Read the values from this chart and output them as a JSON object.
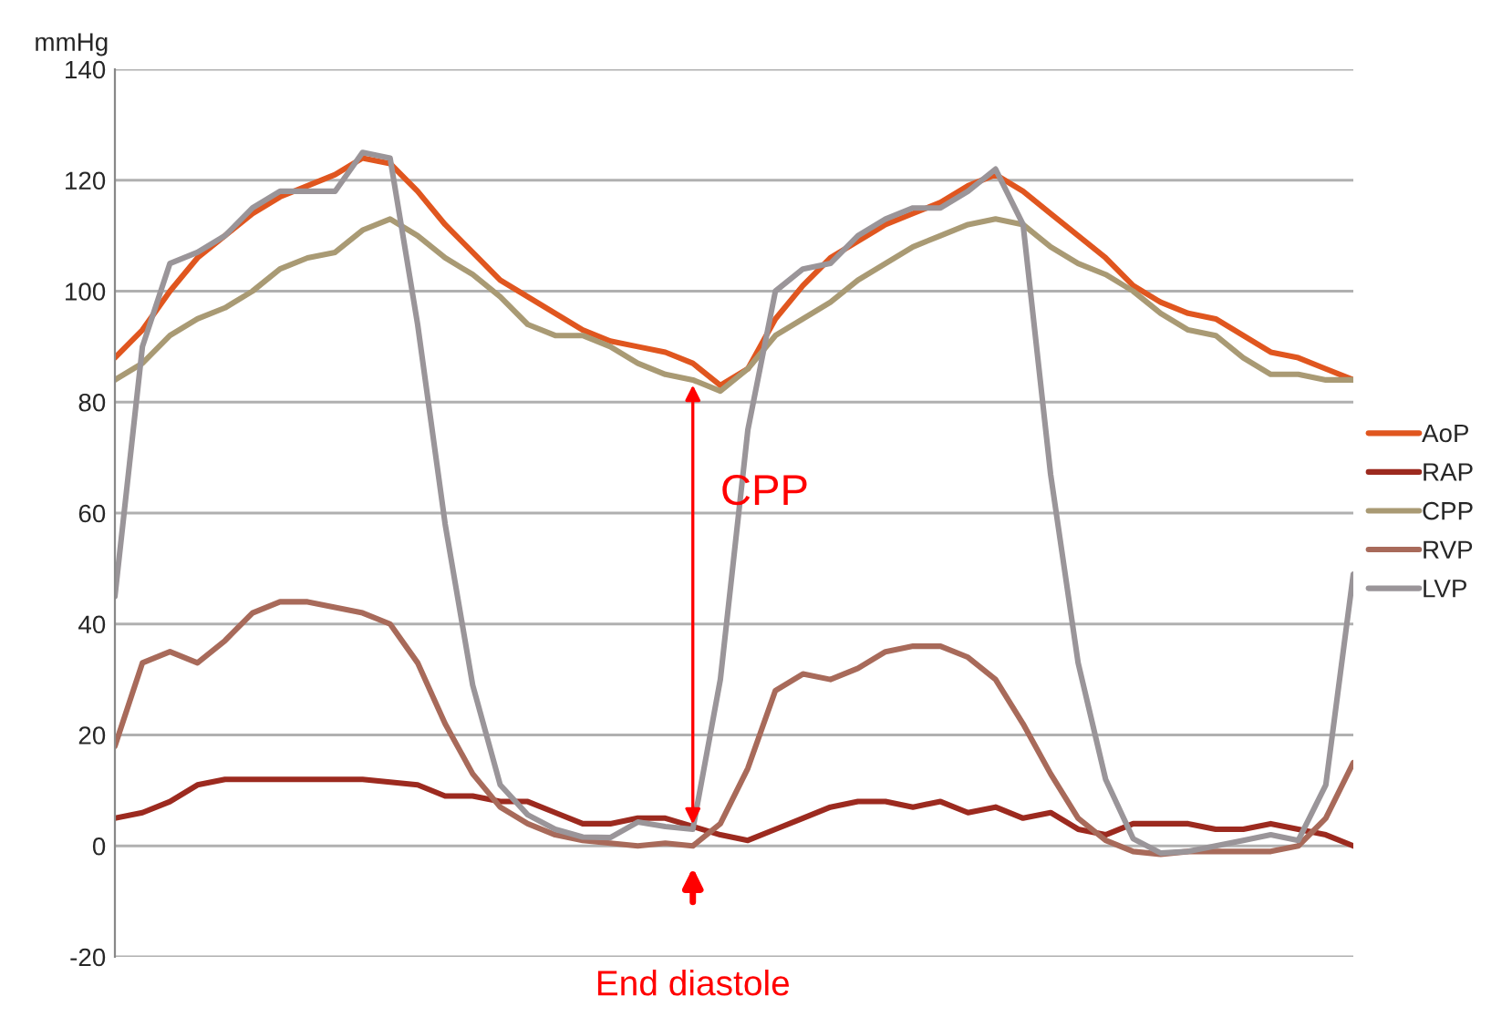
{
  "chart_data": {
    "type": "line",
    "ylabel": "mmHg",
    "categories": [
      null,
      null,
      null,
      null,
      null,
      null,
      null,
      null,
      null,
      null,
      null,
      null,
      null,
      null,
      null,
      null,
      null,
      null,
      null,
      null,
      null,
      null,
      null,
      null,
      null,
      null,
      null,
      null,
      null,
      null,
      null,
      null,
      null,
      null,
      null,
      null,
      null,
      null,
      null,
      null,
      null,
      null,
      null,
      null,
      null,
      null
    ],
    "series": [
      {
        "name": "AoP",
        "color": "#e0561f",
        "values": [
          88,
          93,
          100,
          106,
          110,
          114,
          117,
          119,
          121,
          124,
          123,
          118,
          112,
          107,
          102,
          99,
          96,
          93,
          91,
          90,
          89,
          87,
          83,
          86,
          95,
          101,
          106,
          109,
          112,
          114,
          116,
          119,
          121,
          118,
          114,
          110,
          106,
          101,
          98,
          96,
          95,
          92,
          89,
          88,
          86,
          84
        ]
      },
      {
        "name": "RAP",
        "color": "#9c2a1f",
        "values": [
          5,
          6,
          8,
          11,
          12,
          12,
          12,
          12,
          12,
          12,
          11.5,
          11,
          9,
          9,
          8,
          8,
          6,
          4,
          4,
          5,
          5,
          3.5,
          2,
          1,
          3,
          5,
          7,
          8,
          8,
          7,
          8,
          6,
          7,
          5,
          6,
          3,
          2,
          4,
          4,
          4,
          3,
          3,
          4,
          3,
          2,
          0
        ]
      },
      {
        "name": "CPP",
        "color": "#a99a74",
        "values": [
          84,
          87,
          92,
          95,
          97,
          100,
          104,
          106,
          107,
          111,
          113,
          110,
          106,
          103,
          99,
          94,
          92,
          92,
          90,
          87,
          85,
          84,
          82,
          86,
          92,
          95,
          98,
          102,
          105,
          108,
          110,
          112,
          113,
          112,
          108,
          105,
          103,
          100,
          96,
          93,
          92,
          88,
          85,
          85,
          84,
          84
        ]
      },
      {
        "name": "RVP",
        "color": "#a86a5a",
        "values": [
          18,
          33,
          35,
          33,
          37,
          42,
          44,
          44,
          43,
          42,
          40,
          33,
          22,
          13,
          7,
          4,
          2,
          1,
          0.5,
          0,
          0.5,
          0,
          4,
          14,
          28,
          31,
          30,
          32,
          35,
          36,
          36,
          34,
          30,
          22,
          13,
          5,
          1,
          -1,
          -1.5,
          -1,
          -1,
          -1,
          -1,
          0,
          5,
          15
        ]
      },
      {
        "name": "LVP",
        "color": "#9a9599",
        "values": [
          45,
          90,
          105,
          107,
          110,
          115,
          118,
          118,
          118,
          125,
          124,
          94,
          58,
          29,
          11,
          5.6,
          3,
          1.6,
          1.5,
          4.3,
          3.5,
          3,
          30,
          75,
          100,
          104,
          105,
          110,
          113,
          115,
          115,
          118,
          122,
          112,
          67,
          33,
          12,
          1.3,
          -1.3,
          -1,
          0,
          1,
          2,
          1,
          11,
          49
        ]
      }
    ],
    "ylim": [
      -20,
      140
    ],
    "yticks": [
      -20,
      0,
      20,
      40,
      60,
      80,
      100,
      120,
      140
    ],
    "grid": "y",
    "legend": "right",
    "tick_labels": "y",
    "marker": "none",
    "line_style": "solid",
    "annotations": [
      "CPP",
      "End diastole"
    ]
  }
}
